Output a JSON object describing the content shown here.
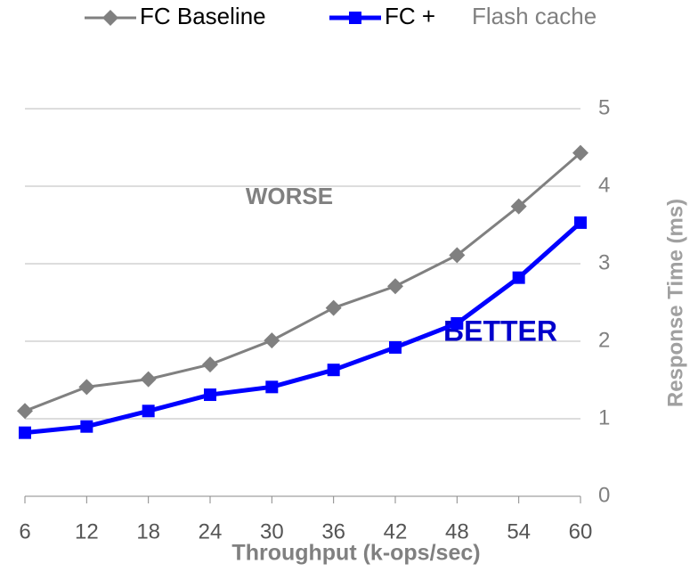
{
  "chart_data": {
    "type": "line",
    "x": [
      6,
      12,
      18,
      24,
      30,
      36,
      42,
      48,
      54,
      60
    ],
    "series": [
      {
        "name": "FC Baseline",
        "color": "#808080",
        "marker": "diamond",
        "values": [
          1.1,
          1.41,
          1.51,
          1.7,
          2.01,
          2.43,
          2.71,
          3.11,
          3.74,
          4.43
        ]
      },
      {
        "name": "FC +",
        "color": "#0000ff",
        "marker": "square",
        "values": [
          0.82,
          0.9,
          1.1,
          1.31,
          1.41,
          1.63,
          1.92,
          2.23,
          2.82,
          3.53
        ]
      }
    ],
    "legend_note": "Flash cache",
    "xlabel": "Throughput (k-ops/sec)",
    "ylabel": "Response Time (ms)",
    "xlim": [
      6,
      60
    ],
    "xticks": [
      6,
      12,
      18,
      24,
      30,
      36,
      42,
      48,
      54,
      60
    ],
    "ylim": [
      0,
      5
    ],
    "yticks": [
      0,
      1,
      2,
      3,
      4,
      5
    ],
    "grid": true,
    "y_axis_side": "right",
    "legend": "top",
    "annotations": [
      {
        "text": "WORSE",
        "color": "#808080"
      },
      {
        "text": "BETTER",
        "color": "#0000cc"
      }
    ]
  }
}
